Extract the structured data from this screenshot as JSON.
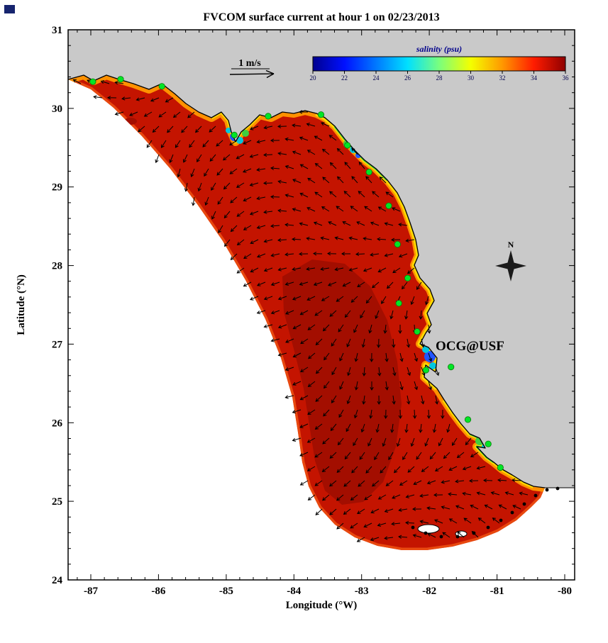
{
  "window": {
    "corner_marker_color": "#16246e"
  },
  "title": "FVCOM surface current at hour 1 on 02/23/2013",
  "axes": {
    "xlabel": "Longitude (°W)",
    "ylabel": "Latitude (°N)",
    "x_tick_labels": [
      "-87",
      "-86",
      "-85",
      "-84",
      "-83",
      "-82",
      "-81",
      "-80"
    ],
    "x_tick_values": [
      -87,
      -86,
      -85,
      -84,
      -83,
      -82,
      -81,
      -80
    ],
    "y_tick_labels": [
      "31",
      "30",
      "29",
      "28",
      "27",
      "26",
      "25",
      "24"
    ],
    "y_tick_values": [
      31,
      30,
      29,
      28,
      27,
      26,
      25,
      24
    ],
    "x_range_deg_w": [
      -87.35,
      -79.85
    ],
    "y_range_deg_n": [
      24,
      31
    ]
  },
  "colorbar": {
    "title": "salinity (psu)",
    "tick_labels": [
      "20",
      "22",
      "24",
      "26",
      "28",
      "30",
      "32",
      "34",
      "36"
    ],
    "min_psu": 20,
    "max_psu": 36,
    "colors": [
      "#00008f",
      "#0010ff",
      "#0078ff",
      "#00e0ff",
      "#7aff7d",
      "#f4ff00",
      "#ff9800",
      "#ff1c00",
      "#8f0000"
    ]
  },
  "vector_scale": {
    "label": "1 m/s"
  },
  "compass": {
    "label": "N"
  },
  "annotation": {
    "text": "OCG@USF",
    "color": "#ff0000"
  },
  "map": {
    "land_color": "#c9c9c9",
    "open_water_color": "#ffffff",
    "coastline_color": "#000000",
    "vector_color": "#000000",
    "station_color": "#00e626",
    "salinity_field": {
      "dominant_psu": 36,
      "dominant_color": "#c41400",
      "inner_shade_color": "#a30e00",
      "boundary_rim_color": "#e8480f",
      "coastal_band_colors": [
        "#ff9100",
        "#ffd900",
        "#3fce3f",
        "#00c8e0",
        "#2255ff"
      ]
    },
    "stations_lon_lat": [
      [
        -86.97,
        30.34
      ],
      [
        -86.56,
        30.37
      ],
      [
        -85.95,
        30.28
      ],
      [
        -84.88,
        29.66
      ],
      [
        -84.38,
        29.9
      ],
      [
        -83.6,
        29.92
      ],
      [
        -83.21,
        29.53
      ],
      [
        -82.89,
        29.19
      ],
      [
        -82.6,
        28.76
      ],
      [
        -82.47,
        28.27
      ],
      [
        -82.32,
        27.84
      ],
      [
        -82.45,
        27.52
      ],
      [
        -82.18,
        27.16
      ],
      [
        -82.05,
        26.67
      ],
      [
        -81.68,
        26.71
      ],
      [
        -81.43,
        26.04
      ],
      [
        -81.13,
        25.73
      ],
      [
        -80.95,
        25.43
      ]
    ]
  }
}
